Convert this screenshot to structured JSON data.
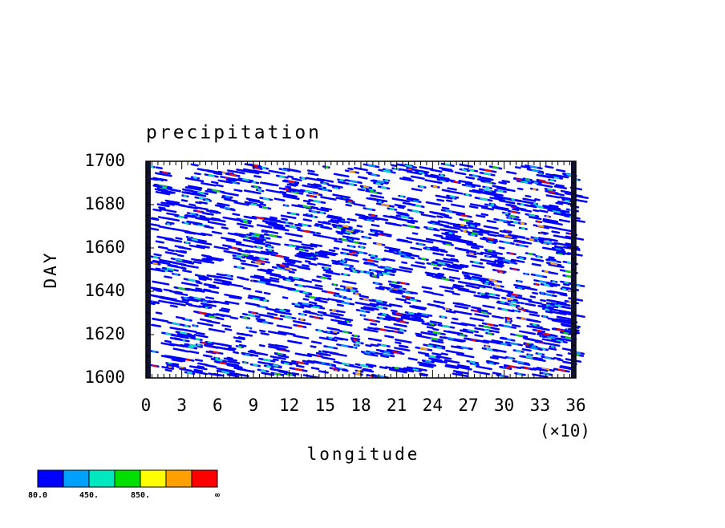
{
  "chart_data": {
    "type": "contour",
    "title": "precipitation",
    "x_label": "longitude",
    "y_label": "DAY",
    "x_scale_label": "(×10)",
    "xlim": [
      0,
      36
    ],
    "xticks": [
      0,
      3,
      6,
      9,
      12,
      15,
      18,
      21,
      24,
      27,
      30,
      33,
      36
    ],
    "ylim": [
      1600,
      1700
    ],
    "yticks": [
      1600,
      1620,
      1640,
      1660,
      1680,
      1700
    ],
    "colorbar": {
      "colors": [
        "#0000ff",
        "#00a0ff",
        "#00e8c0",
        "#00e000",
        "#ffff00",
        "#ffa000",
        "#ff0000"
      ],
      "labels": [
        {
          "value": 80,
          "label": "80.0"
        },
        {
          "value": 450,
          "label": "450."
        },
        {
          "value": 850,
          "label": "850."
        },
        "∞"
      ]
    }
  }
}
